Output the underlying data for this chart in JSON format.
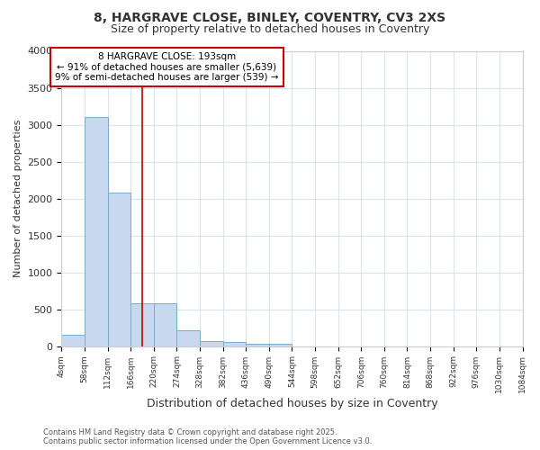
{
  "title_line1": "8, HARGRAVE CLOSE, BINLEY, COVENTRY, CV3 2XS",
  "title_line2": "Size of property relative to detached houses in Coventry",
  "xlabel": "Distribution of detached houses by size in Coventry",
  "ylabel": "Number of detached properties",
  "bins": [
    4,
    58,
    112,
    166,
    220,
    274,
    328,
    382,
    436,
    490,
    544,
    598,
    652,
    706,
    760,
    814,
    868,
    922,
    976,
    1030,
    1084
  ],
  "values": [
    155,
    3105,
    2085,
    580,
    580,
    215,
    70,
    55,
    30,
    30,
    0,
    0,
    0,
    0,
    0,
    0,
    0,
    0,
    0,
    0
  ],
  "bar_color": "#c8d8ee",
  "bar_edge_color": "#7aaad0",
  "red_line_x": 193,
  "ylim": [
    0,
    4000
  ],
  "yticks": [
    0,
    500,
    1000,
    1500,
    2000,
    2500,
    3000,
    3500,
    4000
  ],
  "grid_color": "#d8e4f0",
  "annotation_text_line1": "8 HARGRAVE CLOSE: 193sqm",
  "annotation_text_line2": "← 91% of detached houses are smaller (5,639)",
  "annotation_text_line3": "9% of semi-detached houses are larger (539) →",
  "annotation_box_color": "#cc0000",
  "annotation_box_bg": "#ffffff",
  "footer_line1": "Contains HM Land Registry data © Crown copyright and database right 2025.",
  "footer_line2": "Contains public sector information licensed under the Open Government Licence v3.0.",
  "bg_color": "#ffffff",
  "plot_bg_color": "#ffffff"
}
